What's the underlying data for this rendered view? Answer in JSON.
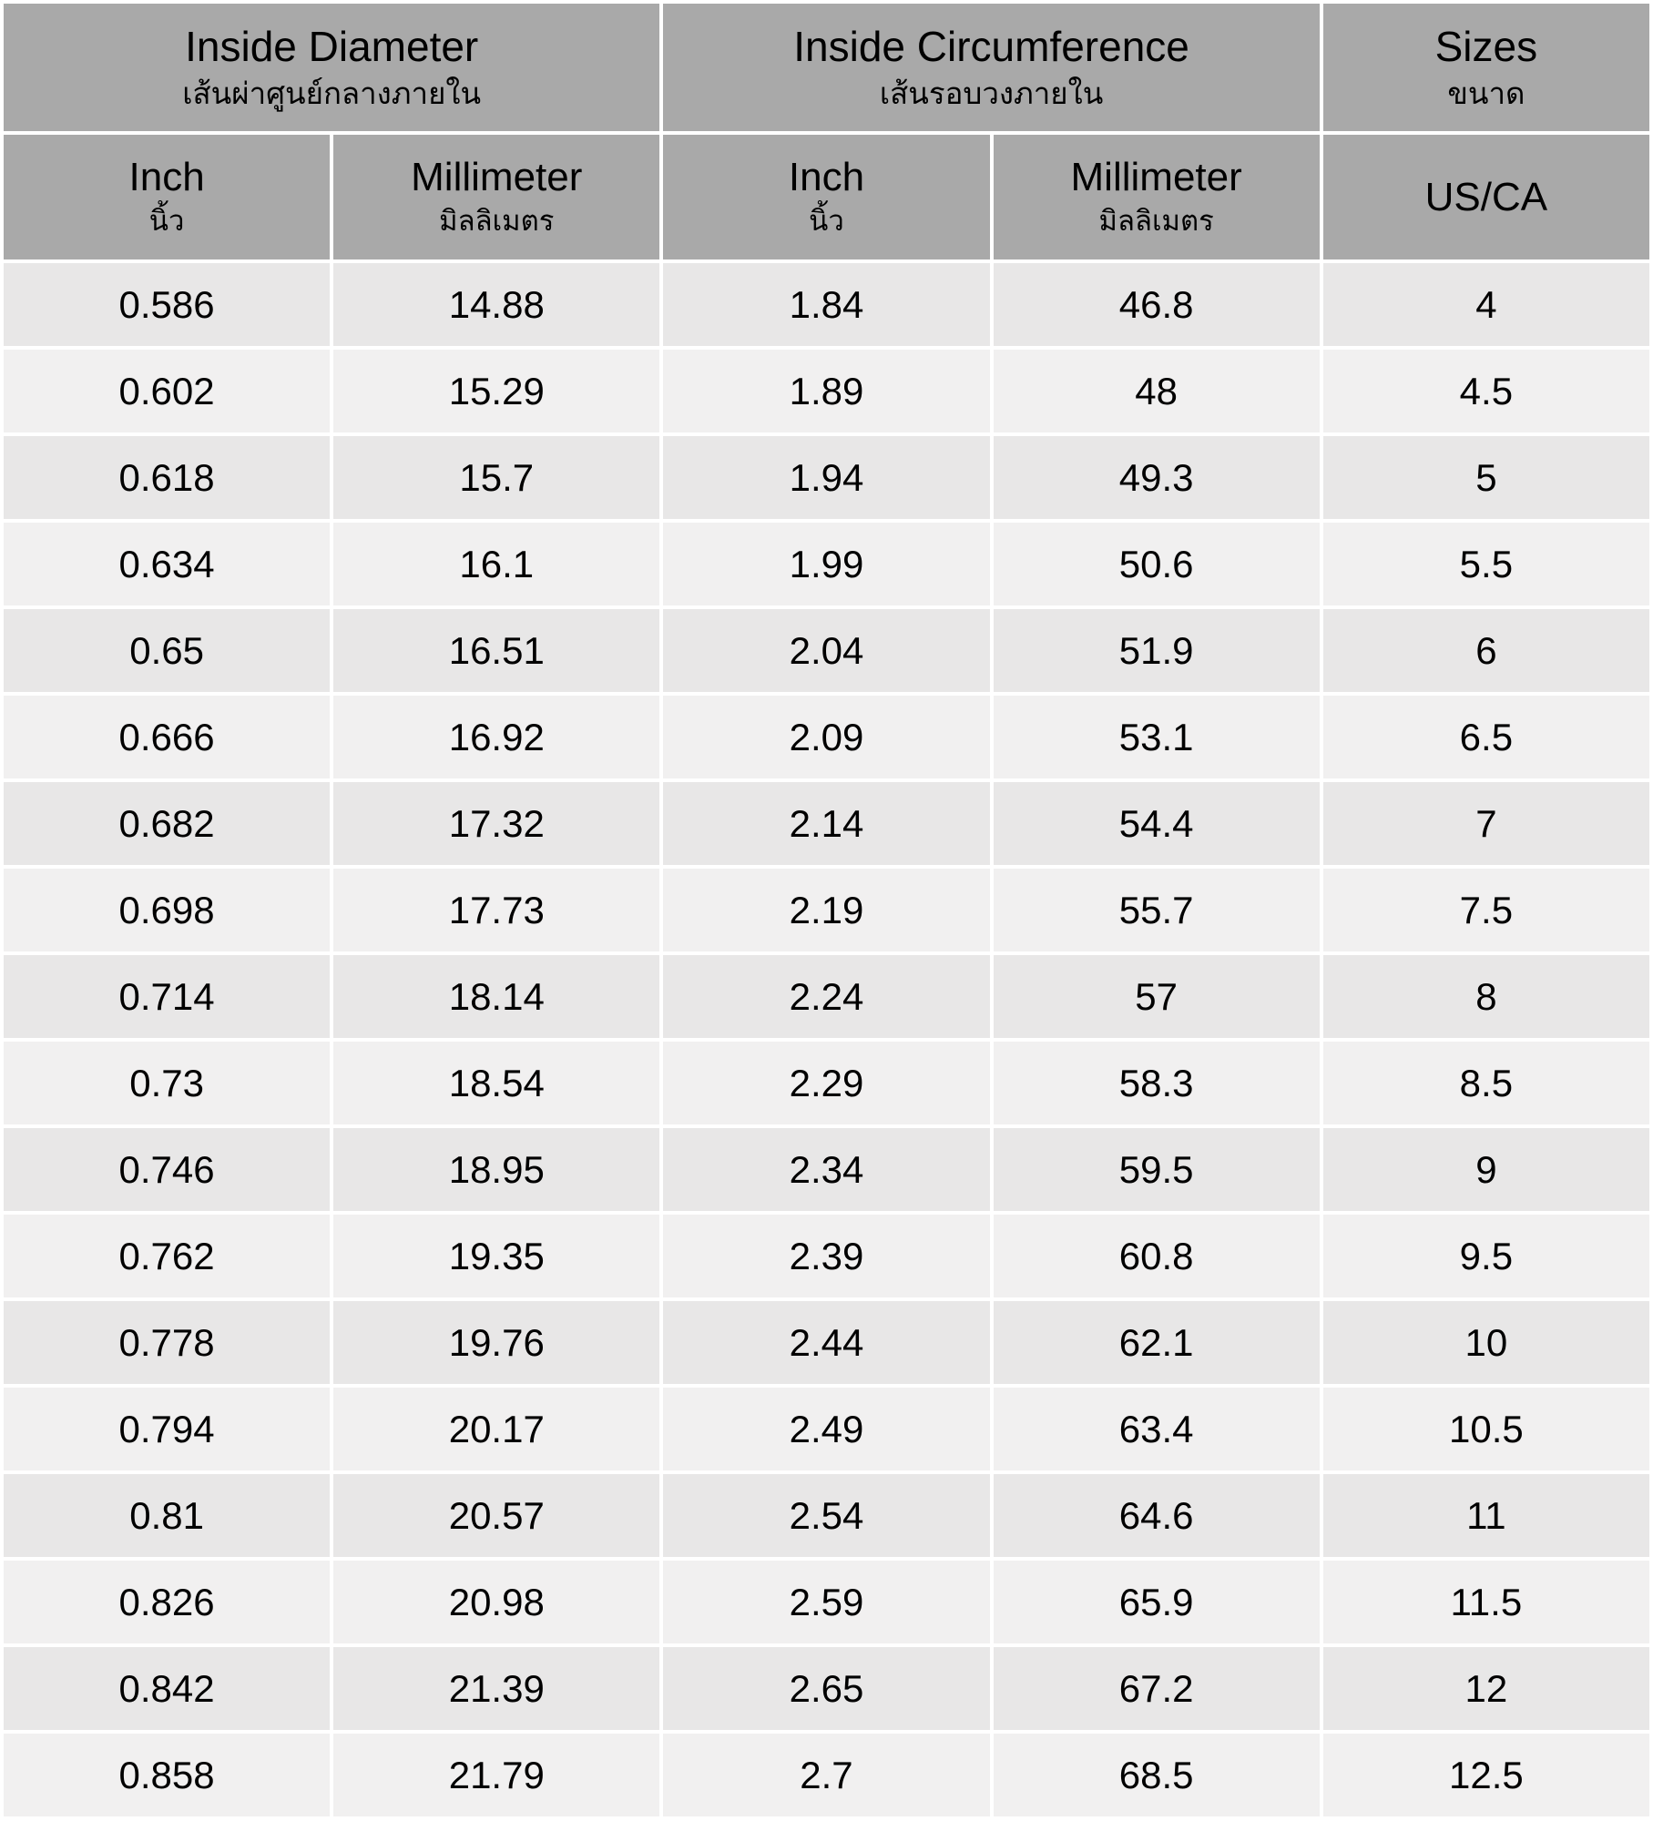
{
  "chart_data": {
    "type": "table",
    "title": "",
    "header_groups": [
      {
        "label_en": "Inside Diameter",
        "label_th": "เส้นผ่าศูนย์กลางภายใน",
        "colspan": 2
      },
      {
        "label_en": "Inside Circumference",
        "label_th": "เส้นรอบวงภายใน",
        "colspan": 2
      },
      {
        "label_en": "Sizes",
        "label_th": "ขนาด",
        "colspan": 1
      }
    ],
    "columns": [
      {
        "label_en": "Inch",
        "label_th": "นิ้ว"
      },
      {
        "label_en": "Millimeter",
        "label_th": "มิลลิเมตร"
      },
      {
        "label_en": "Inch",
        "label_th": "นิ้ว"
      },
      {
        "label_en": "Millimeter",
        "label_th": "มิลลิเมตร"
      },
      {
        "label_en": "US/CA",
        "label_th": ""
      }
    ],
    "rows": [
      [
        "0.586",
        "14.88",
        "1.84",
        "46.8",
        "4"
      ],
      [
        "0.602",
        "15.29",
        "1.89",
        "48",
        "4.5"
      ],
      [
        "0.618",
        "15.7",
        "1.94",
        "49.3",
        "5"
      ],
      [
        "0.634",
        "16.1",
        "1.99",
        "50.6",
        "5.5"
      ],
      [
        "0.65",
        "16.51",
        "2.04",
        "51.9",
        "6"
      ],
      [
        "0.666",
        "16.92",
        "2.09",
        "53.1",
        "6.5"
      ],
      [
        "0.682",
        "17.32",
        "2.14",
        "54.4",
        "7"
      ],
      [
        "0.698",
        "17.73",
        "2.19",
        "55.7",
        "7.5"
      ],
      [
        "0.714",
        "18.14",
        "2.24",
        "57",
        "8"
      ],
      [
        "0.73",
        "18.54",
        "2.29",
        "58.3",
        "8.5"
      ],
      [
        "0.746",
        "18.95",
        "2.34",
        "59.5",
        "9"
      ],
      [
        "0.762",
        "19.35",
        "2.39",
        "60.8",
        "9.5"
      ],
      [
        "0.778",
        "19.76",
        "2.44",
        "62.1",
        "10"
      ],
      [
        "0.794",
        "20.17",
        "2.49",
        "63.4",
        "10.5"
      ],
      [
        "0.81",
        "20.57",
        "2.54",
        "64.6",
        "11"
      ],
      [
        "0.826",
        "20.98",
        "2.59",
        "65.9",
        "11.5"
      ],
      [
        "0.842",
        "21.39",
        "2.65",
        "67.2",
        "12"
      ],
      [
        "0.858",
        "21.79",
        "2.7",
        "68.5",
        "12.5"
      ]
    ]
  },
  "colors": {
    "header_bg": "#a9a9a9",
    "row_odd_bg": "#e8e7e7",
    "row_even_bg": "#f1f0f0",
    "grid": "#ffffff",
    "text": "#000000"
  }
}
